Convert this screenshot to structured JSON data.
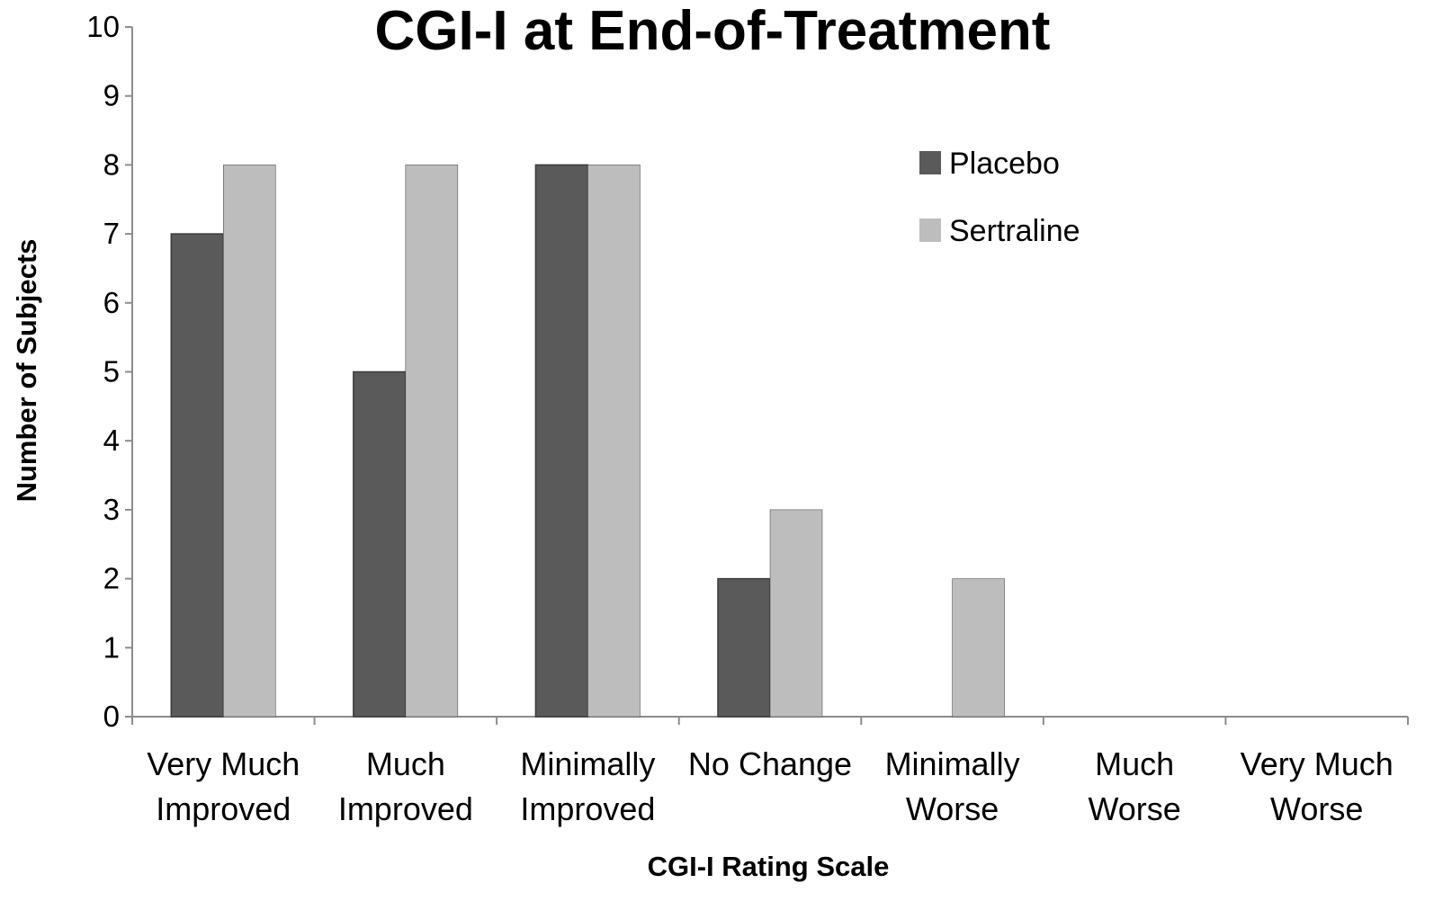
{
  "chart_data": {
    "type": "bar",
    "title": "CGI-I at End-of-Treatment",
    "xlabel": "CGI-I Rating Scale",
    "ylabel": "Number of Subjects",
    "ylim": [
      0,
      10
    ],
    "yticks": [
      0,
      1,
      2,
      3,
      4,
      5,
      6,
      7,
      8,
      9,
      10
    ],
    "grid": false,
    "legend_position": "top-right",
    "categories": [
      [
        "Very Much",
        "Improved"
      ],
      [
        "Much",
        "Improved"
      ],
      [
        "Minimally",
        "Improved"
      ],
      [
        "No Change"
      ],
      [
        "Minimally",
        "Worse"
      ],
      [
        "Much",
        "Worse"
      ],
      [
        "Very Much",
        "Worse"
      ]
    ],
    "series": [
      {
        "name": "Placebo",
        "color": "#5a5a5a",
        "values": [
          7,
          5,
          8,
          2,
          0,
          0,
          0
        ]
      },
      {
        "name": "Sertraline",
        "color": "#bdbdbd",
        "values": [
          8,
          8,
          8,
          3,
          2,
          0,
          0
        ]
      }
    ]
  }
}
